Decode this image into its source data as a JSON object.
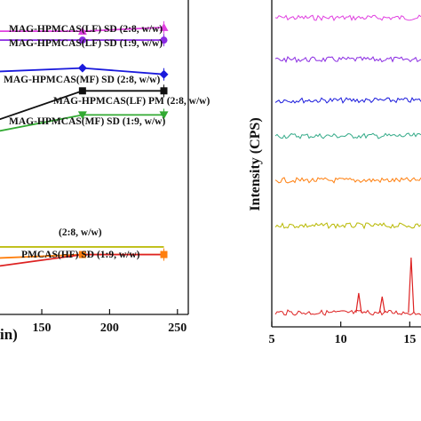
{
  "chart_data": [
    {
      "type": "line",
      "xlabel_visible_fragment": "in)",
      "xlim": [
        112,
        258
      ],
      "ylim": [
        0,
        112
      ],
      "x_ticks": [
        "150",
        "200",
        "250"
      ],
      "series": [
        {
          "name": "MAG-HPMCAS(LF) SD (2:8, w/w)",
          "color": "#e040e0",
          "marker": "triangle",
          "x": [
            112,
            180,
            240
          ],
          "y": [
            106,
            106,
            107.5
          ]
        },
        {
          "name": "MAG-HPMCAS(LF) SD (1:9, w/w)",
          "color": "#8a2be2",
          "marker": "circle",
          "x": [
            112,
            180,
            240
          ],
          "y": [
            102.5,
            102.5,
            102.5
          ]
        },
        {
          "name": "MAG-HPMCAS(MF) SD (2:8, w/w)",
          "color": "#1a1adc",
          "marker": "diamond",
          "x": [
            112,
            180,
            240
          ],
          "y": [
            90,
            91.5,
            89
          ]
        },
        {
          "name": "MAG-HPMCAS(LF) PM (2:8, w/w)",
          "color": "#111111",
          "marker": "square",
          "x": [
            112,
            180,
            240
          ],
          "y": [
            70,
            82.5,
            82.5
          ]
        },
        {
          "name": "MAG-HPMCAS(MF) SD (1:9, w/w)",
          "color": "#33aa33",
          "marker": "triangle-down",
          "x": [
            112,
            180,
            240
          ],
          "y": [
            66,
            73,
            73
          ]
        },
        {
          "name": "(2:8, w/w)",
          "color": "#b8b800",
          "marker": "none",
          "x": [
            112,
            180,
            240
          ],
          "y": [
            21,
            21,
            21
          ]
        },
        {
          "name": "PMCAS(HF) SD (1:9, w/w)",
          "color": "#ff7f0e",
          "marker": "square",
          "x": [
            112,
            180,
            240
          ],
          "y": [
            16.5,
            18,
            18
          ]
        },
        {
          "name": "",
          "color": "#dd2222",
          "marker": "none",
          "x": [
            112,
            180,
            240
          ],
          "y": [
            13,
            18,
            18
          ]
        }
      ]
    },
    {
      "type": "line",
      "ylabel": "Intensity (CPS)",
      "xlim": [
        5,
        17
      ],
      "x_ticks": [
        "5",
        "10",
        "15"
      ],
      "traces": [
        {
          "color": "#e040e0",
          "baseline_level": 7,
          "peaks": []
        },
        {
          "color": "#8a2be2",
          "baseline_level": 6,
          "peaks": []
        },
        {
          "color": "#1a1adc",
          "baseline_level": 5,
          "peaks": []
        },
        {
          "color": "#33aa88",
          "baseline_level": 4,
          "peaks": []
        },
        {
          "color": "#ff7f0e",
          "baseline_level": 3,
          "peaks": []
        },
        {
          "color": "#b8b800",
          "baseline_level": 2,
          "peaks": []
        },
        {
          "color": "#dd2222",
          "baseline_level": 1,
          "peaks": [
            11.3,
            13.0,
            15.1
          ]
        }
      ]
    }
  ]
}
